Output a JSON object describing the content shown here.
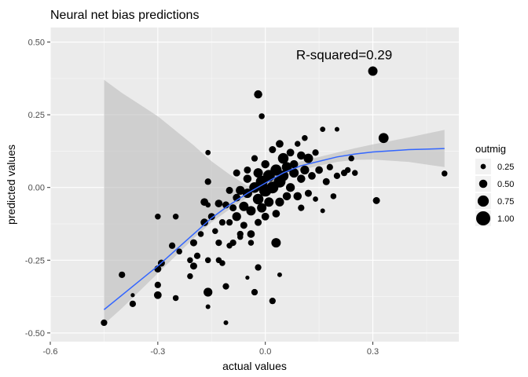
{
  "chart_data": {
    "type": "scatter",
    "title": "Neural net bias predictions",
    "xlabel": "actual values",
    "ylabel": "predicted values",
    "xlim": [
      -0.6,
      0.54
    ],
    "ylim": [
      -0.53,
      0.55
    ],
    "x_ticks": [
      -0.6,
      -0.3,
      0.0,
      0.3
    ],
    "x_tick_labels": [
      "-0.6",
      "-0.3",
      "0.0",
      "0.3"
    ],
    "y_ticks": [
      -0.5,
      -0.25,
      0.0,
      0.25,
      0.5
    ],
    "y_tick_labels": [
      "-0.50",
      "-0.25",
      "0.00",
      "0.25",
      "0.50"
    ],
    "grid": true,
    "annotation": {
      "text": "R-squared=0.29",
      "x": 0.22,
      "y": 0.44
    },
    "legend": {
      "title": "outmig",
      "placement": "right",
      "entries": [
        {
          "label": "0.25",
          "size_value": 0.25
        },
        {
          "label": "0.50",
          "size_value": 0.5
        },
        {
          "label": "0.75",
          "size_value": 0.75
        },
        {
          "label": "1.00",
          "size_value": 1.0
        }
      ]
    },
    "smooth": {
      "color": "#3366ff",
      "band_color": "#bdbdbd",
      "line": [
        {
          "x": -0.45,
          "y": -0.42
        },
        {
          "x": -0.4,
          "y": -0.37
        },
        {
          "x": -0.35,
          "y": -0.32
        },
        {
          "x": -0.3,
          "y": -0.27
        },
        {
          "x": -0.25,
          "y": -0.215
        },
        {
          "x": -0.2,
          "y": -0.16
        },
        {
          "x": -0.15,
          "y": -0.105
        },
        {
          "x": -0.1,
          "y": -0.06
        },
        {
          "x": -0.05,
          "y": -0.02
        },
        {
          "x": 0.0,
          "y": 0.015
        },
        {
          "x": 0.05,
          "y": 0.05
        },
        {
          "x": 0.1,
          "y": 0.075
        },
        {
          "x": 0.15,
          "y": 0.09
        },
        {
          "x": 0.2,
          "y": 0.105
        },
        {
          "x": 0.25,
          "y": 0.115
        },
        {
          "x": 0.3,
          "y": 0.122
        },
        {
          "x": 0.35,
          "y": 0.126
        },
        {
          "x": 0.4,
          "y": 0.13
        },
        {
          "x": 0.45,
          "y": 0.132
        },
        {
          "x": 0.5,
          "y": 0.134
        }
      ],
      "upper": [
        0.37,
        0.325,
        0.285,
        0.245,
        0.195,
        0.145,
        0.09,
        0.045,
        0.005,
        0.03,
        0.065,
        0.09,
        0.105,
        0.12,
        0.135,
        0.148,
        0.16,
        0.172,
        0.185,
        0.198
      ],
      "lower": [
        -0.47,
        -0.415,
        -0.355,
        -0.295,
        -0.235,
        -0.175,
        -0.12,
        -0.075,
        -0.035,
        0.0,
        0.035,
        0.06,
        0.075,
        0.088,
        0.095,
        0.096,
        0.092,
        0.088,
        0.079,
        0.07
      ]
    },
    "series": [
      {
        "points": [
          {
            "x": -0.45,
            "y": -0.465,
            "s": 0.35
          },
          {
            "x": -0.4,
            "y": -0.3,
            "s": 0.35
          },
          {
            "x": -0.37,
            "y": -0.4,
            "s": 0.35
          },
          {
            "x": -0.37,
            "y": -0.37,
            "s": 0.15
          },
          {
            "x": -0.3,
            "y": -0.37,
            "s": 0.45
          },
          {
            "x": -0.3,
            "y": -0.335,
            "s": 0.35
          },
          {
            "x": -0.3,
            "y": -0.28,
            "s": 0.4
          },
          {
            "x": -0.29,
            "y": -0.26,
            "s": 0.4
          },
          {
            "x": -0.3,
            "y": -0.1,
            "s": 0.3
          },
          {
            "x": -0.26,
            "y": -0.2,
            "s": 0.35
          },
          {
            "x": -0.25,
            "y": -0.1,
            "s": 0.3
          },
          {
            "x": -0.25,
            "y": -0.38,
            "s": 0.3
          },
          {
            "x": -0.24,
            "y": -0.22,
            "s": 0.3
          },
          {
            "x": -0.21,
            "y": -0.25,
            "s": 0.3
          },
          {
            "x": -0.21,
            "y": -0.305,
            "s": 0.3
          },
          {
            "x": -0.2,
            "y": -0.27,
            "s": 0.4
          },
          {
            "x": -0.2,
            "y": -0.19,
            "s": 0.4
          },
          {
            "x": -0.19,
            "y": -0.235,
            "s": 0.35
          },
          {
            "x": -0.18,
            "y": -0.16,
            "s": 0.3
          },
          {
            "x": -0.17,
            "y": -0.05,
            "s": 0.45
          },
          {
            "x": -0.17,
            "y": -0.12,
            "s": 0.45
          },
          {
            "x": -0.16,
            "y": -0.25,
            "s": 0.3
          },
          {
            "x": -0.16,
            "y": -0.36,
            "s": 0.55
          },
          {
            "x": -0.16,
            "y": -0.41,
            "s": 0.2
          },
          {
            "x": -0.16,
            "y": -0.06,
            "s": 0.25
          },
          {
            "x": -0.16,
            "y": 0.12,
            "s": 0.25
          },
          {
            "x": -0.16,
            "y": 0.02,
            "s": 0.35
          },
          {
            "x": -0.15,
            "y": -0.1,
            "s": 0.4
          },
          {
            "x": -0.14,
            "y": -0.15,
            "s": 0.3
          },
          {
            "x": -0.13,
            "y": -0.25,
            "s": 0.3
          },
          {
            "x": -0.13,
            "y": -0.19,
            "s": 0.35
          },
          {
            "x": -0.13,
            "y": -0.055,
            "s": 0.45
          },
          {
            "x": -0.12,
            "y": -0.12,
            "s": 0.35
          },
          {
            "x": -0.12,
            "y": -0.26,
            "s": 0.3
          },
          {
            "x": -0.11,
            "y": -0.465,
            "s": 0.2
          },
          {
            "x": -0.11,
            "y": -0.34,
            "s": 0.35
          },
          {
            "x": -0.11,
            "y": -0.06,
            "s": 0.4
          },
          {
            "x": -0.1,
            "y": -0.2,
            "s": 0.3
          },
          {
            "x": -0.1,
            "y": -0.01,
            "s": 0.4
          },
          {
            "x": -0.1,
            "y": -0.12,
            "s": 0.35
          },
          {
            "x": -0.09,
            "y": -0.19,
            "s": 0.35
          },
          {
            "x": -0.09,
            "y": -0.07,
            "s": 0.4
          },
          {
            "x": -0.08,
            "y": -0.1,
            "s": 0.55
          },
          {
            "x": -0.08,
            "y": -0.035,
            "s": 0.45
          },
          {
            "x": -0.08,
            "y": 0.05,
            "s": 0.4
          },
          {
            "x": -0.07,
            "y": -0.16,
            "s": 0.35
          },
          {
            "x": -0.07,
            "y": -0.17,
            "s": 0.3
          },
          {
            "x": -0.07,
            "y": -0.01,
            "s": 0.55
          },
          {
            "x": -0.06,
            "y": -0.065,
            "s": 0.6
          },
          {
            "x": -0.06,
            "y": -0.13,
            "s": 0.4
          },
          {
            "x": -0.05,
            "y": -0.31,
            "s": 0.15
          },
          {
            "x": -0.05,
            "y": 0.03,
            "s": 0.5
          },
          {
            "x": -0.05,
            "y": -0.02,
            "s": 0.6
          },
          {
            "x": -0.05,
            "y": 0.06,
            "s": 0.4
          },
          {
            "x": -0.04,
            "y": -0.16,
            "s": 0.45
          },
          {
            "x": -0.04,
            "y": -0.08,
            "s": 0.6
          },
          {
            "x": -0.04,
            "y": -0.19,
            "s": 0.3
          },
          {
            "x": -0.03,
            "y": -0.36,
            "s": 0.35
          },
          {
            "x": -0.03,
            "y": 0.1,
            "s": 0.35
          },
          {
            "x": -0.03,
            "y": 0.0,
            "s": 0.7
          },
          {
            "x": -0.02,
            "y": -0.04,
            "s": 0.7
          },
          {
            "x": -0.02,
            "y": -0.12,
            "s": 0.4
          },
          {
            "x": -0.02,
            "y": 0.32,
            "s": 0.5
          },
          {
            "x": -0.02,
            "y": 0.05,
            "s": 0.6
          },
          {
            "x": -0.02,
            "y": -0.275,
            "s": 0.35
          },
          {
            "x": -0.01,
            "y": 0.245,
            "s": 0.3
          },
          {
            "x": -0.01,
            "y": 0.02,
            "s": 0.8
          },
          {
            "x": -0.01,
            "y": -0.07,
            "s": 0.6
          },
          {
            "x": 0.0,
            "y": -0.1,
            "s": 0.45
          },
          {
            "x": 0.0,
            "y": 0.08,
            "s": 0.5
          },
          {
            "x": 0.0,
            "y": -0.01,
            "s": 0.85
          },
          {
            "x": 0.01,
            "y": 0.04,
            "s": 0.8
          },
          {
            "x": 0.01,
            "y": -0.05,
            "s": 0.6
          },
          {
            "x": 0.02,
            "y": 0.13,
            "s": 0.4
          },
          {
            "x": 0.02,
            "y": -0.39,
            "s": 0.35
          },
          {
            "x": 0.02,
            "y": 0.0,
            "s": 0.8
          },
          {
            "x": 0.03,
            "y": 0.06,
            "s": 0.75
          },
          {
            "x": 0.03,
            "y": -0.09,
            "s": 0.45
          },
          {
            "x": 0.03,
            "y": -0.19,
            "s": 0.6
          },
          {
            "x": 0.04,
            "y": 0.15,
            "s": 0.45
          },
          {
            "x": 0.04,
            "y": 0.02,
            "s": 0.8
          },
          {
            "x": 0.04,
            "y": -0.3,
            "s": 0.2
          },
          {
            "x": 0.04,
            "y": -0.05,
            "s": 0.55
          },
          {
            "x": 0.05,
            "y": 0.1,
            "s": 0.7
          },
          {
            "x": 0.05,
            "y": 0.04,
            "s": 0.7
          },
          {
            "x": 0.06,
            "y": 0.07,
            "s": 0.65
          },
          {
            "x": 0.06,
            "y": -0.03,
            "s": 0.5
          },
          {
            "x": 0.07,
            "y": 0.12,
            "s": 0.45
          },
          {
            "x": 0.07,
            "y": 0.0,
            "s": 0.55
          },
          {
            "x": 0.08,
            "y": 0.05,
            "s": 0.6
          },
          {
            "x": 0.08,
            "y": 0.08,
            "s": 0.5
          },
          {
            "x": 0.09,
            "y": 0.15,
            "s": 0.3
          },
          {
            "x": 0.09,
            "y": -0.03,
            "s": 0.5
          },
          {
            "x": 0.1,
            "y": 0.11,
            "s": 0.5
          },
          {
            "x": 0.1,
            "y": 0.03,
            "s": 0.5
          },
          {
            "x": 0.1,
            "y": -0.07,
            "s": 0.35
          },
          {
            "x": 0.11,
            "y": 0.06,
            "s": 0.55
          },
          {
            "x": 0.11,
            "y": 0.17,
            "s": 0.3
          },
          {
            "x": 0.12,
            "y": -0.02,
            "s": 0.4
          },
          {
            "x": 0.12,
            "y": 0.1,
            "s": 0.6
          },
          {
            "x": 0.13,
            "y": 0.04,
            "s": 0.45
          },
          {
            "x": 0.14,
            "y": 0.12,
            "s": 0.35
          },
          {
            "x": 0.14,
            "y": -0.04,
            "s": 0.25
          },
          {
            "x": 0.15,
            "y": 0.06,
            "s": 0.45
          },
          {
            "x": 0.16,
            "y": 0.2,
            "s": 0.25
          },
          {
            "x": 0.16,
            "y": -0.08,
            "s": 0.2
          },
          {
            "x": 0.17,
            "y": 0.02,
            "s": 0.4
          },
          {
            "x": 0.18,
            "y": 0.07,
            "s": 0.35
          },
          {
            "x": 0.19,
            "y": -0.03,
            "s": 0.3
          },
          {
            "x": 0.2,
            "y": 0.04,
            "s": 0.35
          },
          {
            "x": 0.2,
            "y": 0.2,
            "s": 0.2
          },
          {
            "x": 0.22,
            "y": 0.05,
            "s": 0.35
          },
          {
            "x": 0.23,
            "y": 0.06,
            "s": 0.3
          },
          {
            "x": 0.24,
            "y": 0.1,
            "s": 0.3
          },
          {
            "x": 0.25,
            "y": 0.05,
            "s": 0.3
          },
          {
            "x": 0.3,
            "y": 0.4,
            "s": 0.6
          },
          {
            "x": 0.31,
            "y": -0.045,
            "s": 0.4
          },
          {
            "x": 0.33,
            "y": 0.17,
            "s": 0.65
          },
          {
            "x": 0.5,
            "y": 0.048,
            "s": 0.3
          }
        ]
      }
    ]
  }
}
